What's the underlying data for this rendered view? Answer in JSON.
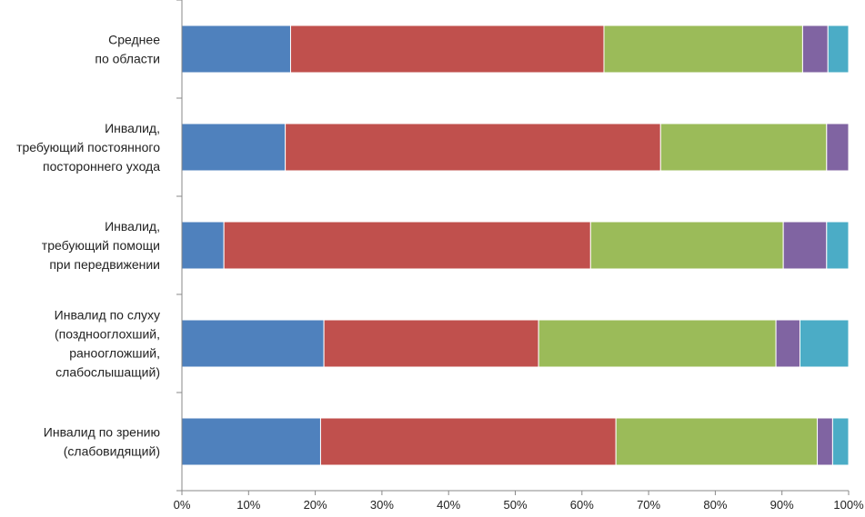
{
  "colors": {
    "series": [
      "#4f81bd",
      "#c0504d",
      "#9bbb59",
      "#8064a2",
      "#4bacc6"
    ],
    "axis": "#888888",
    "text": "#222222"
  },
  "chart_data": {
    "type": "bar",
    "orientation": "horizontal",
    "stacked": "percent",
    "title": "",
    "xlabel": "",
    "ylabel": "",
    "xlim": [
      0,
      100
    ],
    "x_ticks": [
      "0%",
      "10%",
      "20%",
      "30%",
      "40%",
      "50%",
      "60%",
      "70%",
      "80%",
      "90%",
      "100%"
    ],
    "grid": false,
    "legend": "none",
    "categories": [
      [
        "Среднее",
        "по области"
      ],
      [
        "Инвалид,",
        "требующий постоянного",
        "постороннего ухода"
      ],
      [
        "Инвалид,",
        "требующий помощи",
        "при передвижении"
      ],
      [
        "Инвалид по слуху",
        "(позднооглохший,",
        "раноогложший,",
        "слабослышащий)"
      ],
      [
        "Инвалид по зрению",
        "(слабовидящий)"
      ]
    ],
    "series": [
      {
        "values": [
          16.3,
          15.5,
          6.3,
          21.3,
          20.8
        ]
      },
      {
        "values": [
          47.0,
          56.3,
          55.0,
          32.2,
          44.3
        ]
      },
      {
        "values": [
          29.8,
          24.9,
          28.9,
          35.6,
          30.2
        ]
      },
      {
        "values": [
          3.8,
          3.3,
          6.5,
          3.6,
          2.3
        ]
      },
      {
        "values": [
          3.1,
          0.0,
          3.3,
          7.3,
          2.4
        ]
      }
    ]
  }
}
